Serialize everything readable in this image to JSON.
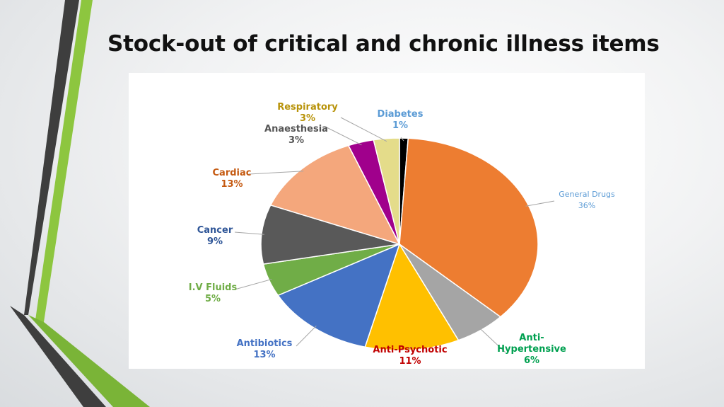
{
  "slide": {
    "title": "Stock-out of critical and chronic illness items"
  },
  "chart_data": {
    "type": "pie",
    "title": "",
    "start_angle_deg": 0,
    "direction": "clockwise",
    "slices": [
      {
        "name": "Diabetes",
        "value": 1,
        "label": "1%",
        "color": "#000000",
        "label_color": "#5B9BD5",
        "label_lines": [
          "Diabetes",
          "1%"
        ]
      },
      {
        "name": "General Drugs",
        "value": 36,
        "label": "36%",
        "color": "#ED7D31",
        "label_color": "#5B9BD5",
        "label_lines": [
          "General Drugs",
          "36%"
        ]
      },
      {
        "name": "Anti-Hypertensive",
        "value": 6,
        "label": "6%",
        "color": "#A5A5A5",
        "label_color": "#00A050",
        "label_lines": [
          "Anti-",
          "Hypertensive",
          "6%"
        ]
      },
      {
        "name": "Anti-Psychotic",
        "value": 11,
        "label": "11%",
        "color": "#FFC000",
        "label_color": "#C00000",
        "label_lines": [
          "Anti-Psychotic",
          "11%"
        ]
      },
      {
        "name": "Antibiotics",
        "value": 13,
        "label": "13%",
        "color": "#4472C4",
        "label_color": "#4472C4",
        "label_lines": [
          "Antibiotics",
          "13%"
        ]
      },
      {
        "name": "I.V Fluids",
        "value": 5,
        "label": "5%",
        "color": "#70AD47",
        "label_color": "#70AD47",
        "label_lines": [
          "I.V Fluids",
          "5%"
        ]
      },
      {
        "name": "Cancer",
        "value": 9,
        "label": "9%",
        "color": "#595959",
        "label_color": "#2E5597",
        "label_lines": [
          "Cancer",
          "9%"
        ]
      },
      {
        "name": "Cardiac",
        "value": 13,
        "label": "13%",
        "color": "#F4A77C",
        "label_color": "#C55A11",
        "label_lines": [
          "Cardiac",
          "13%"
        ]
      },
      {
        "name": "Anaesthesia",
        "value": 3,
        "label": "3%",
        "color": "#A0008C",
        "label_color": "#555555",
        "label_lines": [
          "Anaesthesia",
          "3%"
        ]
      },
      {
        "name": "Respiratory",
        "value": 3,
        "label": "3%",
        "color": "#E4DC8A",
        "label_color": "#B8930A",
        "label_lines": [
          "Respiratory",
          "3%"
        ]
      }
    ]
  }
}
